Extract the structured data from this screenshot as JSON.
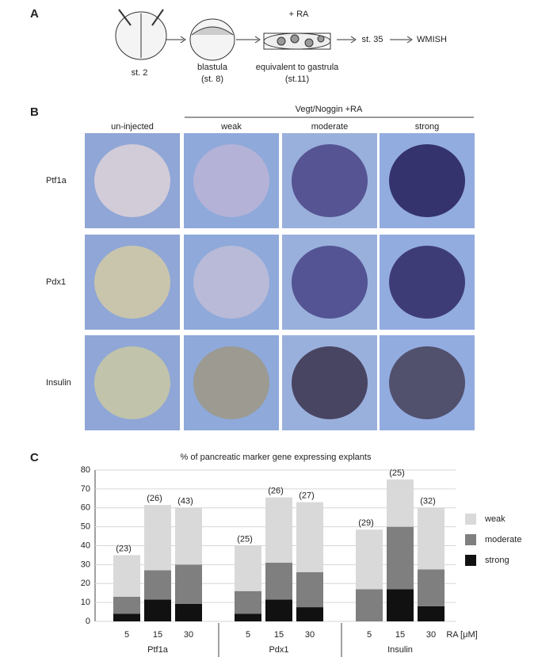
{
  "panel_a": {
    "label": "A",
    "stage_1": "st. 2",
    "stage_2": "blastula",
    "stage_2_sub": "(st. 8)",
    "treatment": "+ RA",
    "stage_3": "equivalent to gastrula",
    "stage_3_sub": "(st.11)",
    "stage_4": "st. 35",
    "readout": "WMISH"
  },
  "panel_b": {
    "label": "B",
    "group_label": "Vegt/Noggin +RA",
    "columns": [
      "un-injected",
      "weak",
      "moderate",
      "strong"
    ],
    "rows": [
      "Ptf1a",
      "Pdx1",
      "Insulin"
    ]
  },
  "panel_c": {
    "label": "C"
  },
  "chart_data": {
    "type": "bar",
    "stacked": true,
    "title": "% of pancreatic marker gene expressing explants",
    "categories": [
      "5",
      "15",
      "30",
      "5",
      "15",
      "30",
      "5",
      "15",
      "30"
    ],
    "groups": [
      "Ptf1a",
      "Pdx1",
      "Insulin"
    ],
    "x_label": "RA [μM]",
    "annotations": [
      "(23)",
      "(26)",
      "(43)",
      "(25)",
      "(26)",
      "(27)",
      "(29)",
      "(25)",
      "(32)"
    ],
    "series": [
      {
        "name": "strong",
        "color": "#111111",
        "values": [
          4,
          11.5,
          9.3,
          4,
          11.5,
          7.5,
          0,
          17,
          8
        ]
      },
      {
        "name": "moderate",
        "color": "#7f7f7f",
        "values": [
          9,
          15.5,
          20.7,
          12,
          19.5,
          18.5,
          17,
          33,
          19.5
        ]
      },
      {
        "name": "weak",
        "color": "#d9d9d9",
        "values": [
          22,
          34.5,
          30,
          24,
          34.5,
          37,
          31.5,
          25,
          32.5
        ]
      }
    ],
    "ylim": [
      0,
      80
    ],
    "yticks": [
      0,
      10,
      20,
      30,
      40,
      50,
      60,
      70,
      80
    ],
    "grid": true
  }
}
